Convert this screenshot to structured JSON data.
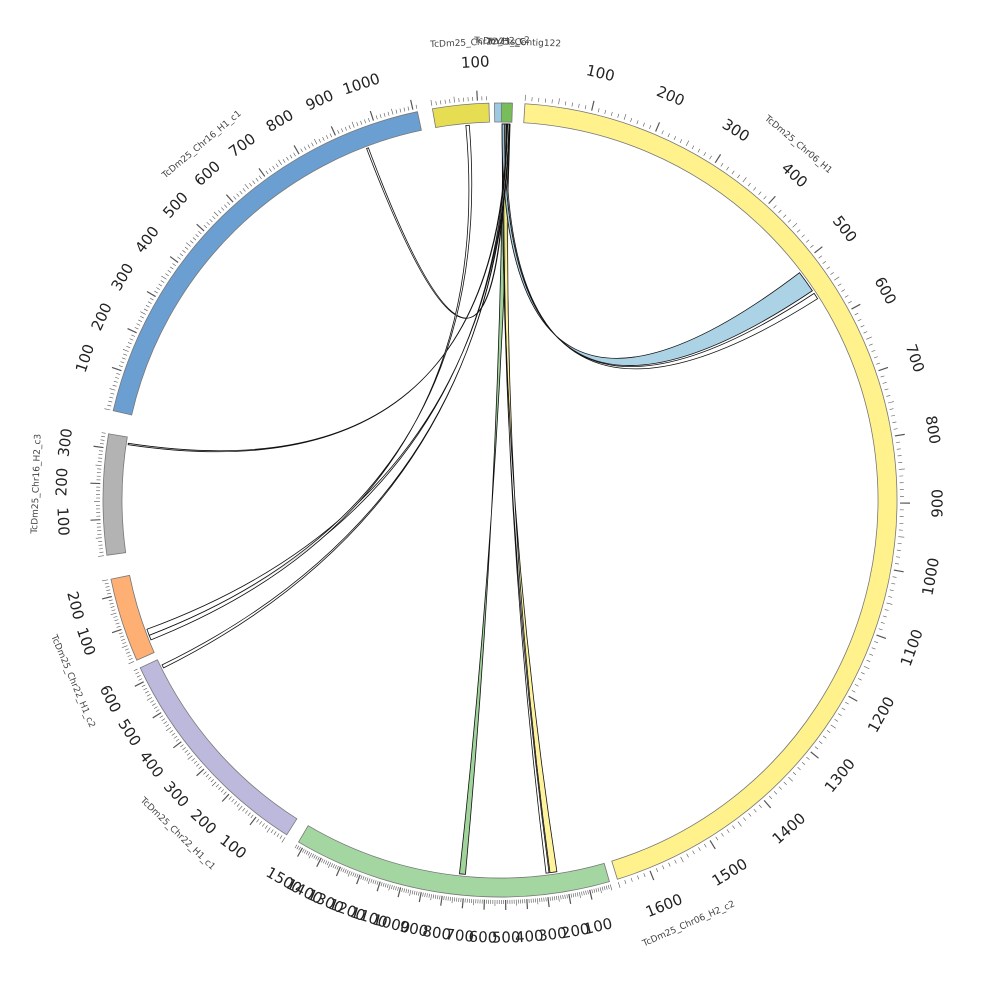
{
  "chromosomes": [
    {
      "id": "chr06_h1",
      "label": "TcDm25_Chr06_H1",
      "length": 1650,
      "color": "#FFF28C",
      "ticks": [
        100,
        200,
        300,
        400,
        500,
        600,
        700,
        800,
        900,
        1000,
        1100,
        1200,
        1300,
        1400,
        1500,
        1600
      ]
    },
    {
      "id": "chr06_h2",
      "label": "TcDm25_Chr06_H2_c2",
      "length": 1530,
      "color": "#A4D6A2",
      "ticks": [
        "100",
        "200",
        "300",
        "400",
        "500",
        "600",
        "700",
        "800",
        "900",
        "1000",
        "1100",
        "1200",
        "1300",
        "1400",
        "1500"
      ]
    },
    {
      "id": "chr22_h1",
      "label": "TcDm25_Chr22_H1_c1",
      "length": 640,
      "color": "#BDB9DC",
      "ticks": [
        "100",
        "200",
        "300",
        "400",
        "500",
        "600"
      ]
    },
    {
      "id": "chr22_h1c2",
      "label": "TcDm25_Chr22_H1_c2",
      "length": 250,
      "color": "#FDAF74",
      "ticks": [
        "100",
        "200"
      ]
    },
    {
      "id": "chr16_h2",
      "label": "TcDm25_Chr16_H2_c3",
      "length": 340,
      "color": "#B3B3B3",
      "ticks": [
        "100",
        "200",
        "300"
      ]
    },
    {
      "id": "chr16_h1",
      "label": "TcDm25_Chr16_H1_c1",
      "length": 1110,
      "color": "#6B9FD1",
      "ticks": [
        "100",
        "200",
        "300",
        "400",
        "500",
        "600",
        "700",
        "800",
        "900",
        "1000"
      ]
    },
    {
      "id": "chr22_h2",
      "label": "TcDm25_Chr22_H2_c2",
      "length": 125,
      "color": "#E6DD52",
      "ticks": [
        "100"
      ]
    },
    {
      "id": "ycts",
      "label": "TcYCts_C",
      "length": 30,
      "color": "#9ECAE1",
      "ticks": []
    },
    {
      "id": "contig",
      "label": "TcDm25_Contig122",
      "length": 30,
      "color": "#79BD5A",
      "ticks": []
    }
  ],
  "links": [
    {
      "from": "contig",
      "from_pos": [
        5,
        25
      ],
      "to": "chr06_h2",
      "to_pos": [
        700,
        730
      ],
      "color": "#8FCC8A"
    },
    {
      "from": "contig",
      "from_pos": [
        3,
        22
      ],
      "to": "chr06_h2",
      "to_pos": [
        240,
        275
      ],
      "color": "#FFF28C"
    },
    {
      "from": "contig",
      "from_pos": [
        4,
        8
      ],
      "to": "chr06_h2",
      "to_pos": [
        280,
        295
      ],
      "color": "#ffffff"
    },
    {
      "from": "contig",
      "from_pos": [
        2,
        10
      ],
      "to": "chr06_h1",
      "to_pos": [
        510,
        545
      ],
      "color": "#9ECAE1"
    },
    {
      "from": "contig",
      "from_pos": [
        10,
        14
      ],
      "to": "chr06_h1",
      "to_pos": [
        550,
        560
      ],
      "color": "#ffffff"
    },
    {
      "from": "contig",
      "from_pos": [
        14,
        16
      ],
      "to": "chr16_h1",
      "to_pos": [
        960,
        965
      ],
      "color": "#ffffff"
    },
    {
      "from": "contig",
      "from_pos": [
        16,
        18
      ],
      "to": "chr16_h2",
      "to_pos": [
        318,
        322
      ],
      "color": "#ffffff"
    },
    {
      "from": "contig",
      "from_pos": [
        18,
        22
      ],
      "to": "chr22_h1c2",
      "to_pos": [
        55,
        75
      ],
      "color": "#ffffff"
    },
    {
      "from": "contig",
      "from_pos": [
        22,
        24
      ],
      "to": "chr22_h1",
      "to_pos": [
        610,
        620
      ],
      "color": "#ffffff"
    },
    {
      "from": "chr22_h2",
      "from_pos": [
        70,
        78
      ],
      "to": "chr22_h1c2",
      "to_pos": [
        40,
        55
      ],
      "color": "#ffffff"
    }
  ]
}
